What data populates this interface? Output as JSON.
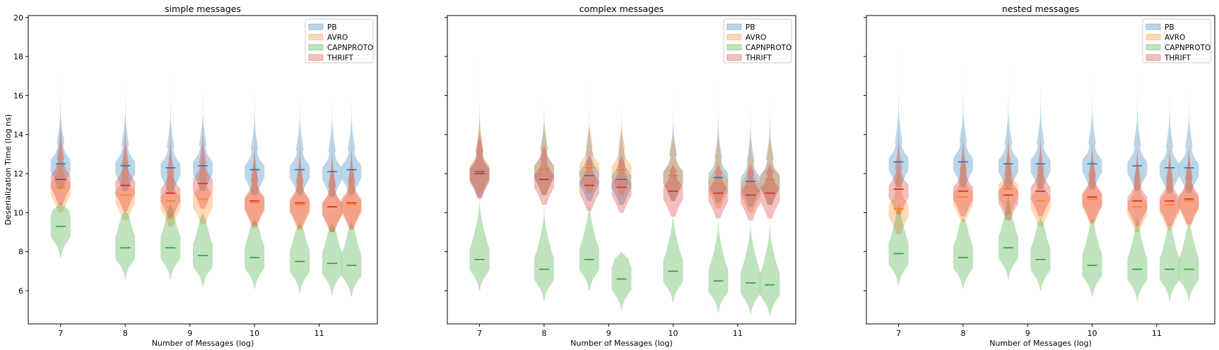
{
  "figure": {
    "ylabel": "Deserialization Time (log ns)"
  },
  "colors": {
    "PB": "#1f77b4",
    "AVRO": "#ff7f0e",
    "CAPNPROTO": "#2ca02c",
    "THRIFT": "#d62728"
  },
  "chart_data": [
    {
      "type": "violin",
      "title": "simple messages",
      "xlabel": "Number of Messages (log)",
      "ylabel": "Deserialization Time (log ns)",
      "xlim": [
        6.5,
        11.9
      ],
      "ylim": [
        4.3,
        20.1
      ],
      "xticks": [
        7,
        8,
        9,
        10,
        11
      ],
      "yticks": [
        6,
        8,
        10,
        12,
        14,
        16,
        18,
        20
      ],
      "legend": {
        "position": "top-right",
        "entries": [
          "PB",
          "AVRO",
          "CAPNPROTO",
          "THRIFT"
        ]
      },
      "x": [
        7.0,
        8.0,
        8.7,
        9.2,
        10.0,
        10.7,
        11.2,
        11.5
      ],
      "series": [
        {
          "name": "PB",
          "medians": [
            12.5,
            12.4,
            12.3,
            12.4,
            12.2,
            12.2,
            12.1,
            12.2
          ],
          "max": [
            18.0,
            18.0,
            17.8,
            18.2,
            18.0,
            16.5,
            16.5,
            16.5
          ]
        },
        {
          "name": "AVRO",
          "medians": [
            11.3,
            10.9,
            10.6,
            10.7,
            10.5,
            10.4,
            10.3,
            10.4
          ],
          "max": [
            15.0,
            16.5,
            16.0,
            15.5,
            15.0,
            14.5,
            14.0,
            14.0
          ]
        },
        {
          "name": "CAPNPROTO",
          "medians": [
            9.3,
            8.2,
            8.2,
            7.8,
            7.7,
            7.5,
            7.4,
            7.3
          ],
          "max": [
            10.5,
            10.2,
            10.5,
            10.0,
            9.7,
            9.5,
            9.5,
            9.5
          ]
        },
        {
          "name": "THRIFT",
          "medians": [
            11.7,
            11.4,
            11.0,
            11.5,
            10.6,
            10.5,
            10.3,
            10.5
          ],
          "max": [
            15.5,
            16.5,
            15.5,
            15.0,
            14.5,
            14.0,
            14.0,
            14.0
          ]
        }
      ]
    },
    {
      "type": "violin",
      "title": "complex messages",
      "xlabel": "Number of Messages (log)",
      "ylabel": "",
      "xlim": [
        6.5,
        11.9
      ],
      "ylim": [
        4.3,
        20.1
      ],
      "xticks": [
        7,
        8,
        9,
        10,
        11
      ],
      "yticks": [
        6,
        8,
        10,
        12,
        14,
        16,
        18,
        20
      ],
      "legend": {
        "position": "top-right",
        "entries": [
          "PB",
          "AVRO",
          "CAPNPROTO",
          "THRIFT"
        ]
      },
      "x": [
        7.0,
        8.0,
        8.7,
        9.2,
        10.0,
        10.7,
        11.2,
        11.5
      ],
      "series": [
        {
          "name": "PB",
          "medians": [
            12.1,
            12.2,
            11.9,
            11.7,
            11.9,
            11.8,
            11.6,
            11.7
          ],
          "max": [
            18.5,
            16.0,
            17.0,
            17.0,
            17.0,
            17.0,
            17.0,
            17.0
          ]
        },
        {
          "name": "AVRO",
          "medians": [
            12.2,
            12.2,
            12.3,
            12.2,
            11.9,
            11.5,
            11.3,
            11.7
          ],
          "max": [
            15.0,
            14.5,
            14.5,
            14.5,
            14.0,
            14.0,
            14.0,
            14.0
          ]
        },
        {
          "name": "CAPNPROTO",
          "medians": [
            7.6,
            7.1,
            7.6,
            6.6,
            7.0,
            6.5,
            6.4,
            6.3
          ],
          "max": [
            11.0,
            10.5,
            10.5,
            8.0,
            10.0,
            10.0,
            10.0,
            10.0
          ]
        },
        {
          "name": "THRIFT",
          "medians": [
            12.0,
            11.7,
            11.4,
            11.3,
            11.1,
            11.0,
            10.9,
            11.0
          ],
          "max": [
            14.0,
            13.5,
            13.0,
            13.0,
            12.5,
            12.5,
            12.5,
            12.5
          ]
        }
      ]
    },
    {
      "type": "violin",
      "title": "nested messages",
      "xlabel": "Number of Messages (log)",
      "ylabel": "",
      "xlim": [
        6.5,
        11.9
      ],
      "ylim": [
        4.3,
        20.1
      ],
      "xticks": [
        7,
        8,
        9,
        10,
        11
      ],
      "yticks": [
        6,
        8,
        10,
        12,
        14,
        16,
        18,
        20
      ],
      "legend": {
        "position": "top-right",
        "entries": [
          "PB",
          "AVRO",
          "CAPNPROTO",
          "THRIFT"
        ]
      },
      "x": [
        7.0,
        8.0,
        8.7,
        9.2,
        10.0,
        10.7,
        11.2,
        11.5
      ],
      "series": [
        {
          "name": "PB",
          "medians": [
            12.6,
            12.6,
            12.5,
            12.5,
            12.5,
            12.4,
            12.3,
            12.3
          ],
          "max": [
            19.0,
            18.0,
            18.0,
            18.0,
            18.0,
            17.5,
            17.0,
            17.0
          ]
        },
        {
          "name": "AVRO",
          "medians": [
            10.2,
            10.8,
            11.2,
            10.6,
            10.7,
            10.3,
            10.4,
            10.6
          ],
          "max": [
            14.0,
            14.0,
            14.5,
            14.0,
            14.0,
            13.5,
            13.5,
            13.5
          ]
        },
        {
          "name": "CAPNPROTO",
          "medians": [
            7.9,
            7.7,
            8.2,
            7.6,
            7.3,
            7.1,
            7.1,
            7.1
          ],
          "max": [
            10.5,
            9.8,
            11.0,
            9.8,
            9.8,
            9.8,
            9.5,
            9.5
          ]
        },
        {
          "name": "THRIFT",
          "medians": [
            11.2,
            11.1,
            10.9,
            11.1,
            10.8,
            10.6,
            10.6,
            10.7
          ],
          "max": [
            14.5,
            14.5,
            14.5,
            14.0,
            14.0,
            13.5,
            13.5,
            13.5
          ]
        }
      ]
    }
  ]
}
